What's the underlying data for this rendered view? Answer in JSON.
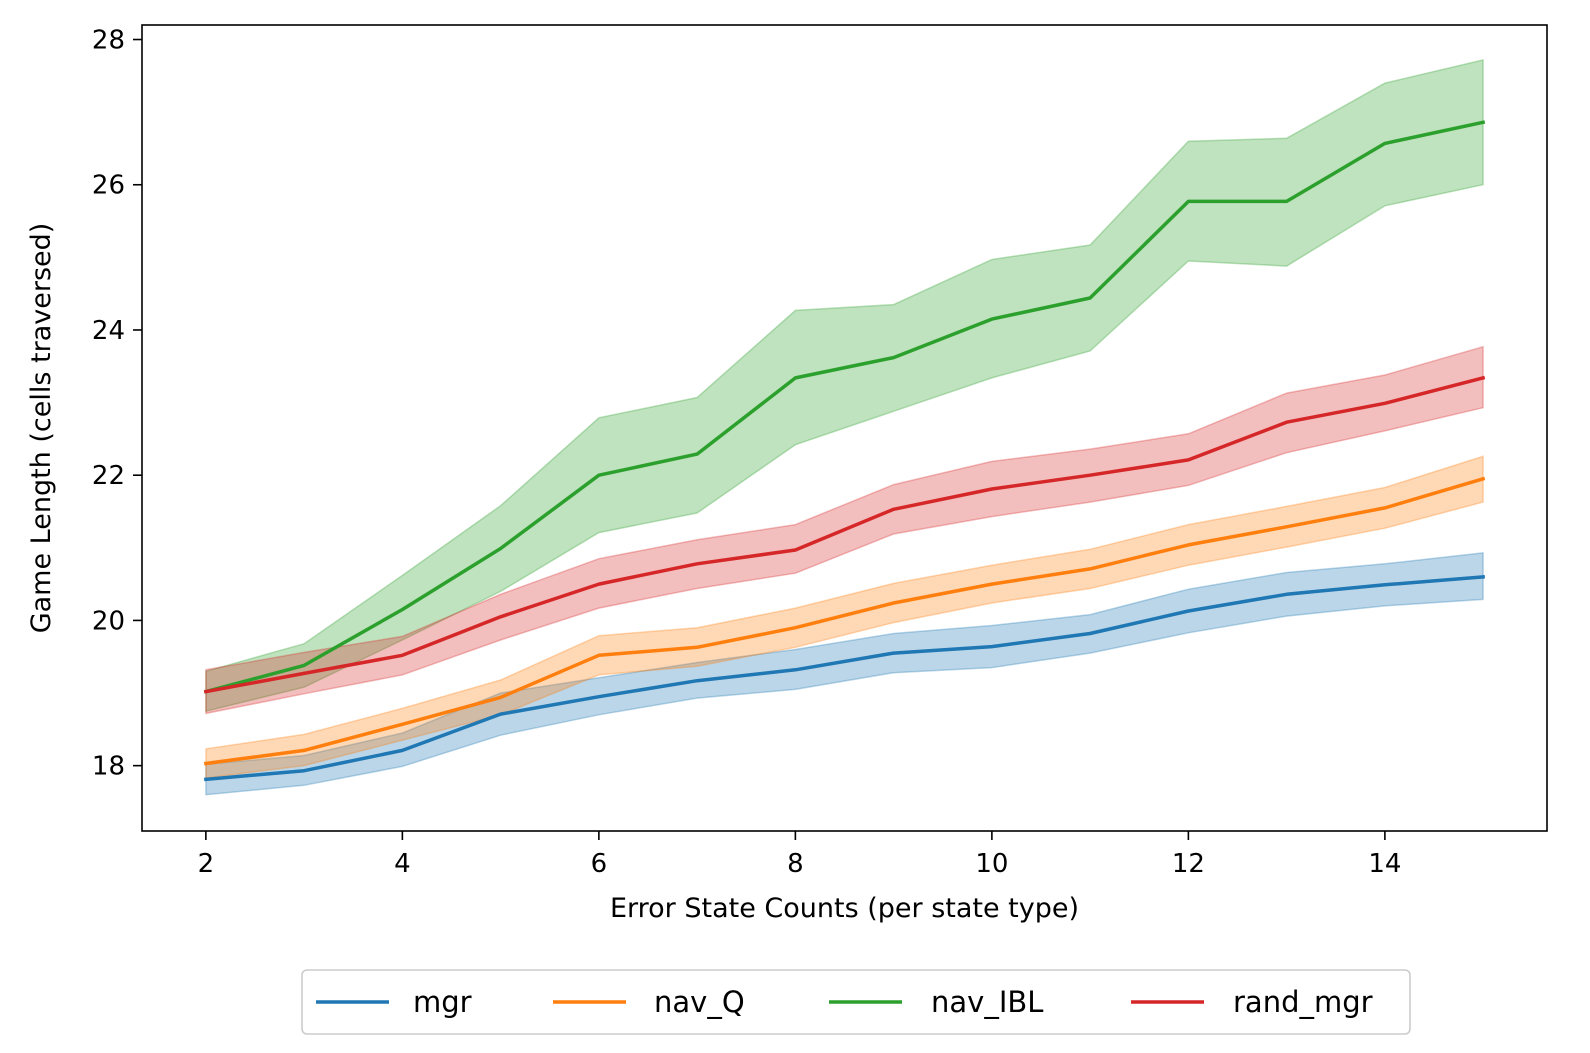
{
  "chart_data": {
    "type": "line",
    "title": "",
    "xlabel": "Error State Counts (per state type)",
    "ylabel": "Game Length (cells traversed)",
    "xlim": [
      1.35,
      15.65
    ],
    "ylim": [
      17.1,
      28.2
    ],
    "xticks": [
      2,
      4,
      6,
      8,
      10,
      12,
      14
    ],
    "yticks": [
      18,
      20,
      22,
      24,
      26,
      28
    ],
    "grid": false,
    "legend_position": "below",
    "x": [
      2,
      3,
      4,
      5,
      6,
      7,
      8,
      9,
      10,
      11,
      12,
      13,
      14,
      15
    ],
    "series": [
      {
        "name": "mgr",
        "color": "#1f77b4",
        "values": [
          17.81,
          17.93,
          18.21,
          18.71,
          18.95,
          19.17,
          19.32,
          19.55,
          19.64,
          19.82,
          20.13,
          20.36,
          20.49,
          20.6
        ],
        "lower": [
          17.6,
          17.73,
          17.99,
          18.42,
          18.7,
          18.93,
          19.05,
          19.28,
          19.35,
          19.55,
          19.83,
          20.06,
          20.2,
          20.29
        ],
        "upper": [
          18.02,
          18.14,
          18.45,
          19.0,
          19.21,
          19.42,
          19.6,
          19.82,
          19.93,
          20.08,
          20.43,
          20.66,
          20.78,
          20.93
        ]
      },
      {
        "name": "nav_Q",
        "color": "#ff7f0e",
        "values": [
          18.03,
          18.21,
          18.57,
          18.94,
          19.52,
          19.63,
          19.9,
          20.24,
          20.5,
          20.71,
          21.04,
          21.29,
          21.55,
          21.95
        ],
        "lower": [
          17.83,
          18.0,
          18.35,
          18.7,
          19.25,
          19.37,
          19.63,
          19.97,
          20.24,
          20.44,
          20.76,
          21.01,
          21.27,
          21.63
        ],
        "upper": [
          18.23,
          18.43,
          18.79,
          19.18,
          19.79,
          19.9,
          20.17,
          20.51,
          20.76,
          20.98,
          21.32,
          21.57,
          21.83,
          22.26
        ]
      },
      {
        "name": "nav_IBL",
        "color": "#2ca02c",
        "values": [
          19.02,
          19.38,
          20.15,
          20.99,
          22.0,
          22.29,
          23.34,
          23.62,
          24.15,
          24.44,
          25.77,
          25.77,
          26.57,
          26.86
        ],
        "lower": [
          18.75,
          19.08,
          19.73,
          20.4,
          21.21,
          21.48,
          22.42,
          22.88,
          23.34,
          23.71,
          24.95,
          24.88,
          25.71,
          26.0
        ],
        "upper": [
          19.3,
          19.68,
          20.62,
          21.58,
          22.79,
          23.07,
          24.27,
          24.35,
          24.97,
          25.17,
          26.6,
          26.64,
          27.4,
          27.72
        ]
      },
      {
        "name": "rand_mgr",
        "color": "#d62728",
        "values": [
          19.02,
          19.27,
          19.52,
          20.05,
          20.5,
          20.78,
          20.97,
          21.53,
          21.81,
          22.0,
          22.21,
          22.73,
          22.99,
          23.34
        ],
        "lower": [
          18.72,
          18.99,
          19.25,
          19.73,
          20.17,
          20.44,
          20.65,
          21.19,
          21.43,
          21.63,
          21.86,
          22.31,
          22.61,
          22.93
        ],
        "upper": [
          19.32,
          19.56,
          19.78,
          20.36,
          20.85,
          21.11,
          21.32,
          21.87,
          22.19,
          22.36,
          22.57,
          23.13,
          23.38,
          23.77
        ]
      }
    ]
  }
}
